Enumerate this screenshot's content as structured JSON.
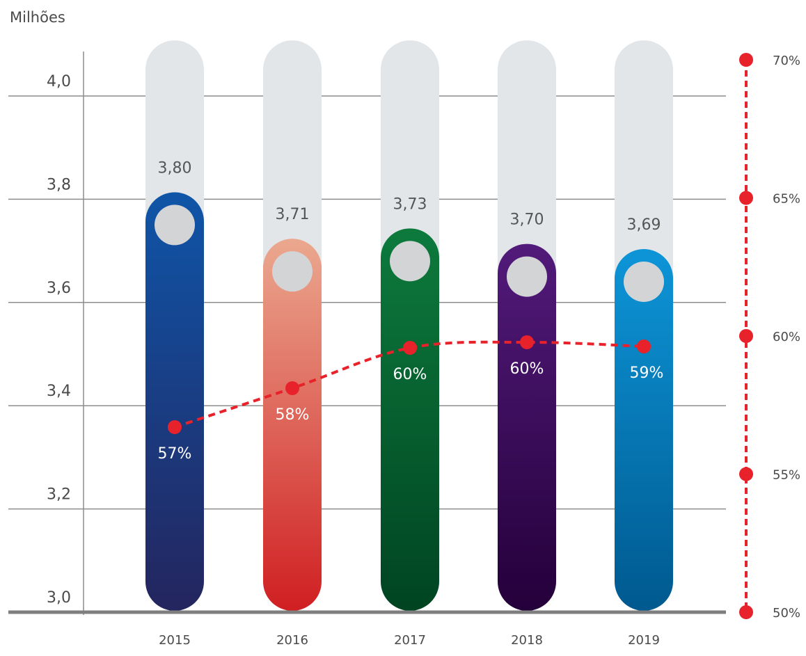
{
  "chart_data": {
    "type": "bar",
    "unit_label": "Milhões",
    "categories": [
      "2015",
      "2016",
      "2017",
      "2018",
      "2019"
    ],
    "values": [
      3.8,
      3.71,
      3.73,
      3.7,
      3.69
    ],
    "value_labels": [
      "3,80",
      "3,71",
      "3,73",
      "3,70",
      "3,69"
    ],
    "ylim": [
      3.0,
      4.0
    ],
    "yticks": [
      3.0,
      3.2,
      3.4,
      3.6,
      3.8,
      4.0
    ],
    "ytick_labels": [
      "3,0",
      "3,2",
      "3,4",
      "3,6",
      "3,8",
      "4,0"
    ],
    "bar_colors": [
      [
        "#0f55a8",
        "#24255e"
      ],
      [
        "#eba88f",
        "#d01f22"
      ],
      [
        "#0d7a3c",
        "#004422"
      ],
      [
        "#521a7a",
        "#24003a"
      ],
      [
        "#0d95d8",
        "#00598f"
      ]
    ],
    "track_color": "#e3e6e9",
    "knob_color": "#d3d4d6",
    "grid": true,
    "secondary": {
      "type": "line",
      "style": "dashed",
      "color": "#e8222a",
      "values": [
        57,
        58,
        60,
        60,
        59
      ],
      "value_labels": [
        "57%",
        "58%",
        "60%",
        "60%",
        "59%"
      ],
      "ylim": [
        50,
        70
      ],
      "yticks": [
        50,
        55,
        60,
        65,
        70
      ],
      "ytick_labels": [
        "50%",
        "55%",
        "60%",
        "65%",
        "70%"
      ]
    }
  }
}
